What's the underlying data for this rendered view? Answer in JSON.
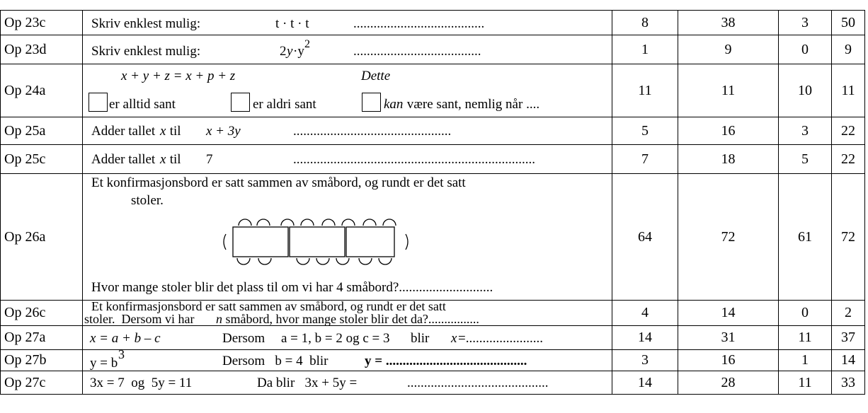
{
  "rows": [
    {
      "label": "Op 23c",
      "text": [
        "Skriv enklest mulig:",
        "t · t · t",
        "......................................."
      ],
      "values": [
        8,
        38,
        3,
        50
      ]
    },
    {
      "label": "Op 23d",
      "text": [
        "Skriv enklest mulig:",
        "2",
        "y",
        "·y",
        "2",
        "......................................"
      ],
      "values": [
        1,
        9,
        0,
        9
      ]
    },
    {
      "label": "Op 24a",
      "text": [
        "x + y + z = x + p + z",
        "Dette",
        "er alltid sant",
        "er aldri sant",
        "kan",
        " være sant, nemlig når ...."
      ],
      "values": [
        11,
        11,
        10,
        11
      ]
    },
    {
      "label": "Op 25a",
      "text": [
        "Adder tallet ",
        "x",
        " til",
        "x + 3y",
        "..............................................."
      ],
      "values": [
        5,
        16,
        3,
        22
      ]
    },
    {
      "label": "Op 25c",
      "text": [
        "Adder tallet ",
        "x",
        " til",
        "7",
        "........................................................................"
      ],
      "values": [
        7,
        18,
        5,
        22
      ]
    },
    {
      "label": "Op 26a",
      "text": [
        "Et konfirmasjonsbord er satt sammen av småbord, og rundt er det satt",
        "stoler.",
        "Hvor mange stoler blir det plass til om vi har 4 småbord?............................"
      ],
      "values": [
        64,
        72,
        61,
        72
      ]
    },
    {
      "label": "Op 26c",
      "text": [
        "Et konfirmasjonsbord er satt sammen av småbord, og rundt er det satt",
        "stoler.  Dersom vi har ",
        "n",
        " småbord, hvor mange stoler blir det da?................"
      ],
      "values": [
        4,
        14,
        0,
        2
      ]
    },
    {
      "label": "Op 27a",
      "text": [
        "x = a + b – c",
        "Dersom",
        "a = 1, b = 2 og c = 3",
        "blir",
        "x",
        "=......................."
      ],
      "values": [
        14,
        31,
        11,
        37
      ]
    },
    {
      "label": "Op 27b",
      "text": [
        "y = b",
        "3",
        "Dersom   b = 4  blir",
        "y = .........................................."
      ],
      "values": [
        3,
        16,
        1,
        14
      ]
    },
    {
      "label": "Op 27c",
      "text": [
        "3x = 7  og  5y = 11",
        "Da blir   3x + 5y =",
        ".........................................."
      ],
      "values": [
        14,
        28,
        11,
        33
      ]
    }
  ]
}
